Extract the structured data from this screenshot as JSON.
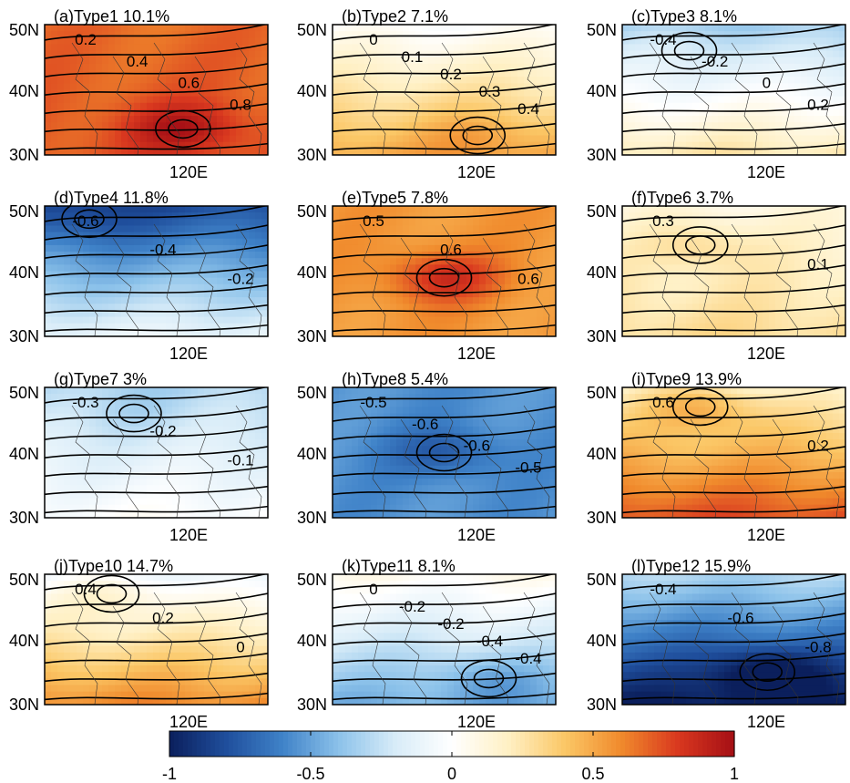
{
  "figure": {
    "colorbar": {
      "min": -1,
      "max": 1,
      "ticks": [
        "-1",
        "-0.5",
        "0",
        "0.5",
        "1"
      ],
      "tick_values": [
        -1,
        -0.5,
        0,
        0.5,
        1
      ],
      "colormap": [
        "#0b1f5c",
        "#1f4e9c",
        "#3f82c8",
        "#8cc2ea",
        "#d8ecf8",
        "#ffffff",
        "#fff0c4",
        "#fbc766",
        "#f08a2c",
        "#d9381f",
        "#a50f15"
      ]
    }
  },
  "chart_data": [
    {
      "type": "heatmap",
      "title": "(a)Type1 10.1%",
      "ytick_labels": [
        "50N",
        "40N",
        "30N"
      ],
      "xtick_labels": [
        "120E"
      ],
      "contour_labels": [
        "0.2",
        "0.4",
        "0.6",
        "0.8"
      ],
      "field": {
        "base": 0.7,
        "grad": 0.05,
        "blob_amp": 0.25,
        "blob_center": [
          0.62,
          0.8
        ]
      }
    },
    {
      "type": "heatmap",
      "title": "(b)Type2 7.1%",
      "ytick_labels": [
        "50N",
        "40N",
        "30N"
      ],
      "xtick_labels": [
        "120E"
      ],
      "contour_labels": [
        "0",
        "0.1",
        "0.2",
        "0.3",
        "0.4"
      ],
      "field": {
        "base": 0.25,
        "grad": 0.5,
        "blob_amp": 0.1,
        "blob_center": [
          0.65,
          0.85
        ]
      }
    },
    {
      "type": "heatmap",
      "title": "(c)Type3 8.1%",
      "ytick_labels": [
        "50N",
        "40N",
        "30N"
      ],
      "xtick_labels": [
        "120E"
      ],
      "contour_labels": [
        "-0.4",
        "-0.2",
        "0",
        "0.2"
      ],
      "field": {
        "base": -0.05,
        "grad": 0.6,
        "blob_amp": 0.05,
        "blob_center": [
          0.3,
          0.2
        ]
      }
    },
    {
      "type": "heatmap",
      "title": "(d)Type4 11.8%",
      "ytick_labels": [
        "50N",
        "40N",
        "30N"
      ],
      "xtick_labels": [
        "120E"
      ],
      "contour_labels": [
        "-0.6",
        "-0.4",
        "-0.2"
      ],
      "field": {
        "base": -0.45,
        "grad": 0.7,
        "blob_amp": -0.1,
        "blob_center": [
          0.2,
          0.1
        ]
      }
    },
    {
      "type": "heatmap",
      "title": "(e)Type5 7.8%",
      "ytick_labels": [
        "50N",
        "40N",
        "30N"
      ],
      "xtick_labels": [
        "120E"
      ],
      "contour_labels": [
        "0.5",
        "0.6",
        "0.6"
      ],
      "field": {
        "base": 0.55,
        "grad": 0.0,
        "blob_amp": 0.3,
        "blob_center": [
          0.5,
          0.55
        ]
      }
    },
    {
      "type": "heatmap",
      "title": "(f)Type6 3.7%",
      "ytick_labels": [
        "50N",
        "40N",
        "30N"
      ],
      "xtick_labels": [
        "120E"
      ],
      "contour_labels": [
        "0.3",
        "0.1"
      ],
      "field": {
        "base": 0.2,
        "grad": 0.2,
        "blob_amp": 0.15,
        "blob_center": [
          0.35,
          0.3
        ]
      }
    },
    {
      "type": "heatmap",
      "title": "(g)Type7 3%",
      "ytick_labels": [
        "50N",
        "40N",
        "30N"
      ],
      "xtick_labels": [
        "120E"
      ],
      "contour_labels": [
        "-0.3",
        "-0.2",
        "-0.1"
      ],
      "field": {
        "base": -0.15,
        "grad": 0.3,
        "blob_amp": -0.05,
        "blob_center": [
          0.4,
          0.2
        ]
      }
    },
    {
      "type": "heatmap",
      "title": "(h)Type8 5.4%",
      "ytick_labels": [
        "50N",
        "40N",
        "30N"
      ],
      "xtick_labels": [
        "120E"
      ],
      "contour_labels": [
        "-0.5",
        "-0.6",
        "-0.6",
        "-0.5"
      ],
      "field": {
        "base": -0.55,
        "grad": 0.0,
        "blob_amp": -0.2,
        "blob_center": [
          0.5,
          0.5
        ]
      }
    },
    {
      "type": "heatmap",
      "title": "(i)Type9 13.9%",
      "ytick_labels": [
        "50N",
        "40N",
        "30N"
      ],
      "xtick_labels": [
        "120E"
      ],
      "contour_labels": [
        "0.6",
        "0.2"
      ],
      "field": {
        "base": 0.45,
        "grad": 0.6,
        "blob_amp": 0.25,
        "blob_center": [
          0.35,
          0.15
        ]
      }
    },
    {
      "type": "heatmap",
      "title": "(j)Type10 14.7%",
      "ytick_labels": [
        "50N",
        "40N",
        "30N"
      ],
      "xtick_labels": [
        "120E"
      ],
      "contour_labels": [
        "0.4",
        "0.2",
        "0"
      ],
      "field": {
        "base": 0.25,
        "grad": 0.7,
        "blob_amp": 0.15,
        "blob_center": [
          0.3,
          0.15
        ]
      }
    },
    {
      "type": "heatmap",
      "title": "(k)Type11 8.1%",
      "ytick_labels": [
        "50N",
        "40N",
        "30N"
      ],
      "xtick_labels": [
        "120E"
      ],
      "contour_labels": [
        "0",
        "-0.2",
        "-0.2",
        "-0.4",
        "-0.4"
      ],
      "field": {
        "base": -0.2,
        "grad": -0.5,
        "blob_amp": -0.15,
        "blob_center": [
          0.7,
          0.8
        ]
      }
    },
    {
      "type": "heatmap",
      "title": "(l)Type12 15.9%",
      "ytick_labels": [
        "50N",
        "40N",
        "30N"
      ],
      "xtick_labels": [
        "120E"
      ],
      "contour_labels": [
        "-0.4",
        "-0.6",
        "-0.8"
      ],
      "field": {
        "base": -0.65,
        "grad": -0.7,
        "blob_amp": -0.3,
        "blob_center": [
          0.65,
          0.75
        ]
      }
    }
  ]
}
